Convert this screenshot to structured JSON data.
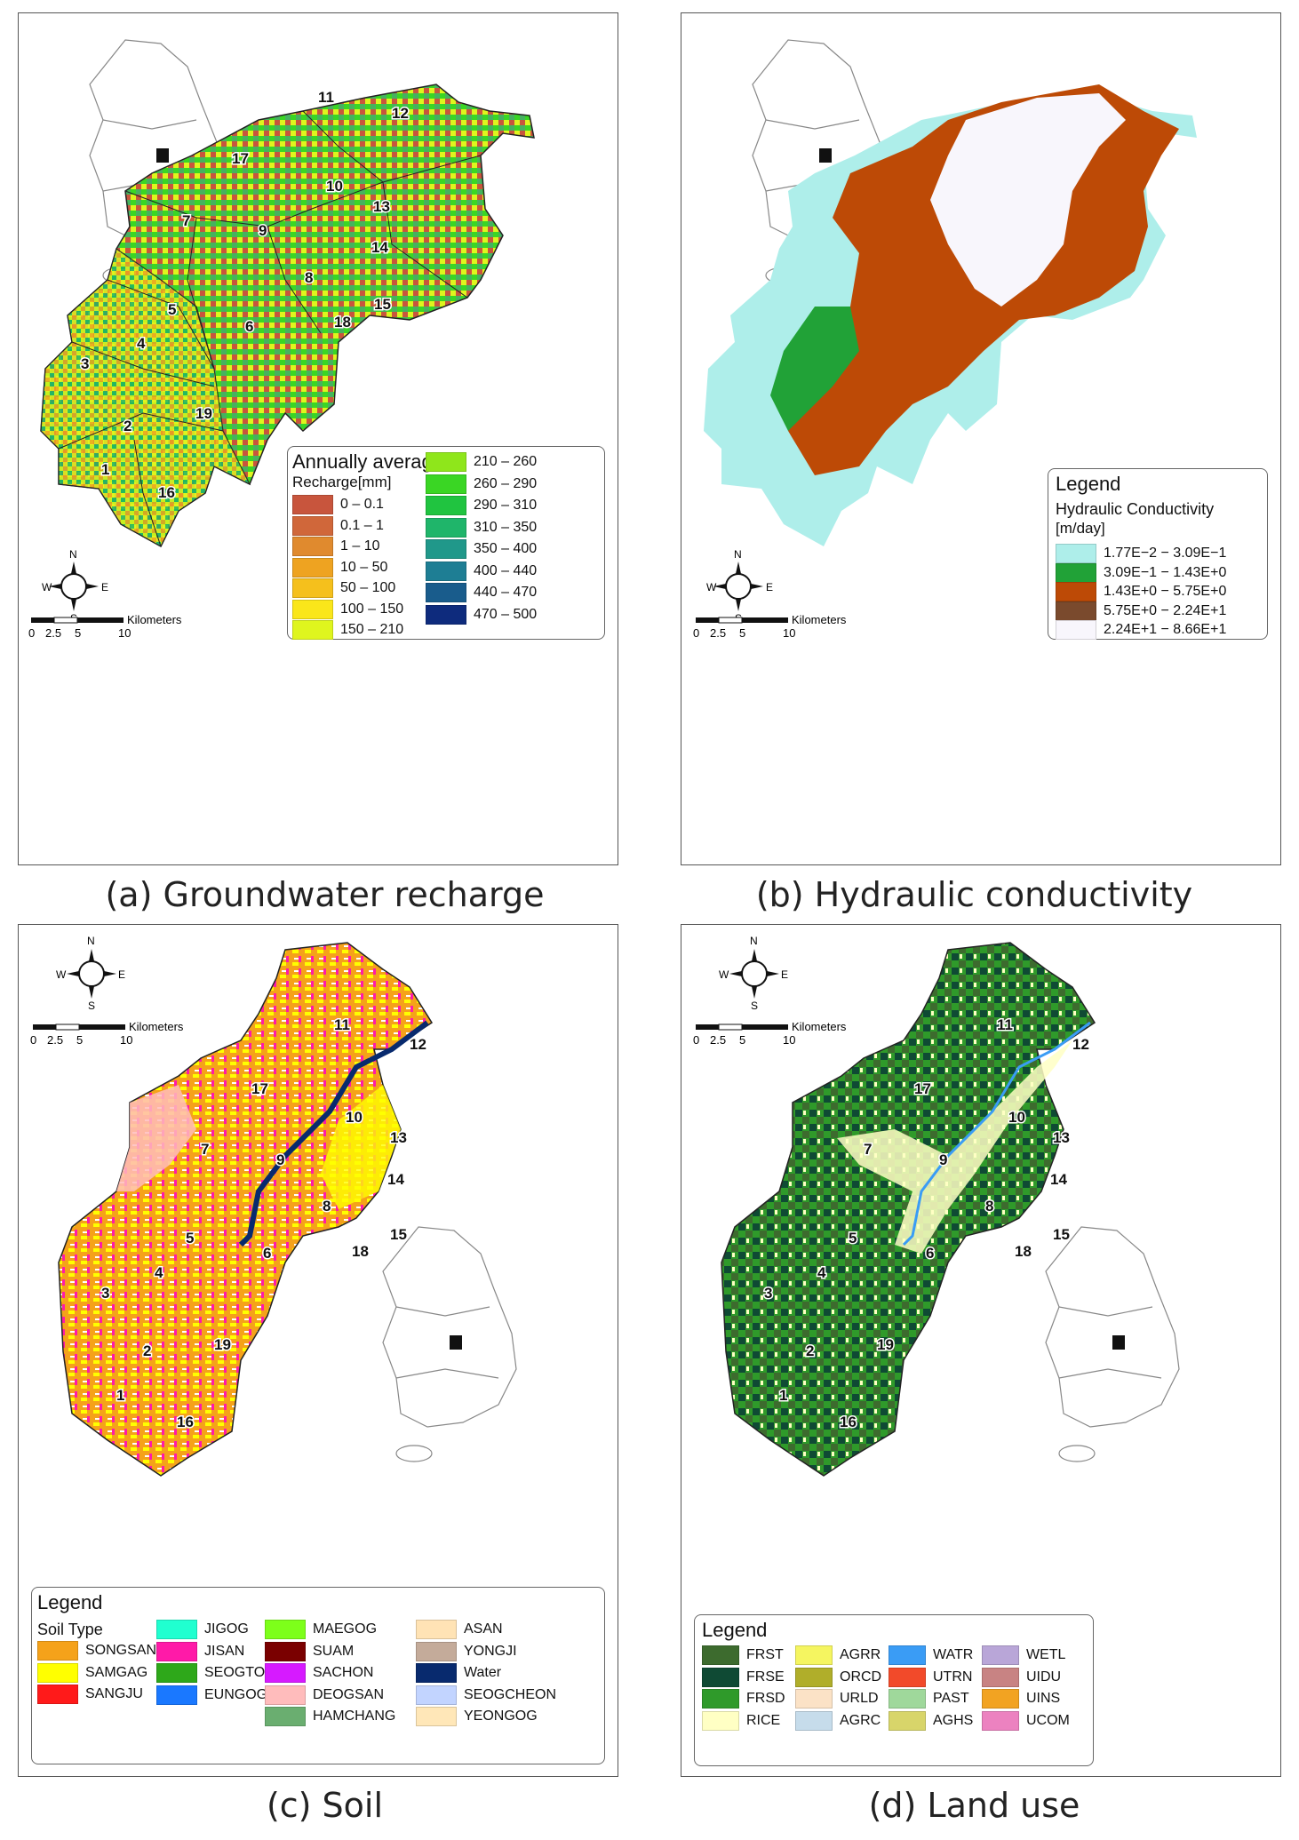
{
  "panels": [
    {
      "id": "a",
      "caption": "(a) Groundwater recharge",
      "legend_title": "Annually averaged",
      "legend_subtitle": "Recharge[mm]",
      "classes": [
        {
          "label": "0 – 0.1",
          "color": "#c8553d"
        },
        {
          "label": "0.1 – 1",
          "color": "#d0673a"
        },
        {
          "label": "1 – 10",
          "color": "#e08a2e"
        },
        {
          "label": "10 – 50",
          "color": "#eea321"
        },
        {
          "label": "50 – 100",
          "color": "#f5c01c"
        },
        {
          "label": "100 – 150",
          "color": "#fae61a"
        },
        {
          "label": "150 – 210",
          "color": "#dff51e"
        },
        {
          "label": "210 – 260",
          "color": "#8fe61b"
        },
        {
          "label": "260 – 290",
          "color": "#3ad624"
        },
        {
          "label": "290 – 310",
          "color": "#20c440"
        },
        {
          "label": "310 – 350",
          "color": "#1fb56a"
        },
        {
          "label": "350 – 400",
          "color": "#20988a"
        },
        {
          "label": "400 – 440",
          "color": "#1e7e94"
        },
        {
          "label": "440 – 470",
          "color": "#195c8c"
        },
        {
          "label": "470 – 500",
          "color": "#0e2b7d"
        }
      ]
    },
    {
      "id": "b",
      "caption": "(b) Hydraulic conductivity",
      "legend_title": "Legend",
      "legend_subtitle": "Hydraulic Conductivity",
      "legend_unit": "[m/day]",
      "classes": [
        {
          "label": "1.77E−2 − 3.09E−1",
          "color": "#aeeeea"
        },
        {
          "label": "3.09E−1 − 1.43E+0",
          "color": "#21a237"
        },
        {
          "label": "1.43E+0 − 5.75E+0",
          "color": "#bd4a06"
        },
        {
          "label": "5.75E+0 − 2.24E+1",
          "color": "#7a4a2d"
        },
        {
          "label": "2.24E+1 − 8.66E+1",
          "color": "#f8f6fc"
        }
      ]
    },
    {
      "id": "c",
      "caption": "(c) Soil",
      "legend_title": "Legend",
      "legend_subtitle": "Soil Type",
      "classes": [
        {
          "label": "SONGSAN",
          "color": "#f5a21a"
        },
        {
          "label": "SAMGAG",
          "color": "#ffff00"
        },
        {
          "label": "SANGJU",
          "color": "#ff1a1a"
        },
        {
          "label": "JIGOG",
          "color": "#20ffd0"
        },
        {
          "label": "JISAN",
          "color": "#ff1aa8"
        },
        {
          "label": "SEOGTO",
          "color": "#2ea81a"
        },
        {
          "label": "EUNGOG",
          "color": "#1a78ff"
        },
        {
          "label": "MAEGOG",
          "color": "#7dff1a"
        },
        {
          "label": "SUAM",
          "color": "#7a0000"
        },
        {
          "label": "SACHON",
          "color": "#d61aff"
        },
        {
          "label": "DEOGSAN",
          "color": "#ffbcbc"
        },
        {
          "label": "HAMCHANG",
          "color": "#6aae70"
        },
        {
          "label": "ASAN",
          "color": "#ffe3b5"
        },
        {
          "label": "YONGJI",
          "color": "#c4ab9a"
        },
        {
          "label": "Water",
          "color": "#082a6e"
        },
        {
          "label": "SEOGCHEON",
          "color": "#c2d4ff"
        },
        {
          "label": "YEONGOG",
          "color": "#ffe7b8"
        }
      ]
    },
    {
      "id": "d",
      "caption": "(d) Land use",
      "legend_title": "Legend",
      "classes": [
        {
          "label": "FRST",
          "color": "#3d6b2e"
        },
        {
          "label": "FRSE",
          "color": "#0f4a34"
        },
        {
          "label": "FRSD",
          "color": "#2f9a2a"
        },
        {
          "label": "RICE",
          "color": "#ffffc4"
        },
        {
          "label": "AGRR",
          "color": "#f5f560"
        },
        {
          "label": "ORCD",
          "color": "#b0ae2a"
        },
        {
          "label": "URLD",
          "color": "#fbe2c6"
        },
        {
          "label": "AGRC",
          "color": "#c6dceb"
        },
        {
          "label": "WATR",
          "color": "#3a9cf5"
        },
        {
          "label": "UTRN",
          "color": "#f24a2a"
        },
        {
          "label": "PAST",
          "color": "#9fd89b"
        },
        {
          "label": "AGHS",
          "color": "#d8d56a"
        },
        {
          "label": "WETL",
          "color": "#b9a6d8"
        },
        {
          "label": "UIDU",
          "color": "#c88383"
        },
        {
          "label": "UINS",
          "color": "#f2a322"
        },
        {
          "label": "UCOM",
          "color": "#ec82c0"
        }
      ]
    }
  ],
  "compass": {
    "n": "N",
    "s": "S",
    "e": "E",
    "w": "W"
  },
  "scale": {
    "unit": "Kilometers",
    "ticks": [
      "0",
      "2.5",
      "5",
      "10"
    ]
  },
  "subbasins": [
    "1",
    "2",
    "3",
    "4",
    "5",
    "6",
    "7",
    "8",
    "9",
    "10",
    "11",
    "12",
    "13",
    "14",
    "15",
    "16",
    "17",
    "18",
    "19"
  ]
}
